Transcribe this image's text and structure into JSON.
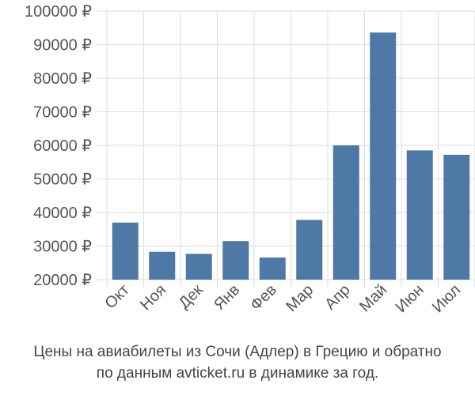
{
  "chart_data": {
    "type": "bar",
    "categories": [
      "Окт",
      "Ноя",
      "Дек",
      "Янв",
      "Фев",
      "Мар",
      "Апр",
      "Май",
      "Июн",
      "Июл"
    ],
    "values": [
      37000,
      28300,
      27700,
      31500,
      26600,
      37800,
      60000,
      93600,
      58500,
      57200
    ],
    "ylim": [
      20000,
      100000
    ],
    "yticks": [
      20000,
      30000,
      40000,
      50000,
      60000,
      70000,
      80000,
      90000,
      100000
    ],
    "ytick_labels": [
      "20000 ₽",
      "30000 ₽",
      "40000 ₽",
      "50000 ₽",
      "60000 ₽",
      "70000 ₽",
      "80000 ₽",
      "90000 ₽",
      "100000 ₽"
    ],
    "grid": true,
    "bar_color": "#4e79a7",
    "grid_color": "#dddddd",
    "caption_lines": [
      "Цены на авиабилеты из Сочи (Адлер) в Грецию и обратно",
      "по данным avticket.ru в динамике за год."
    ]
  }
}
